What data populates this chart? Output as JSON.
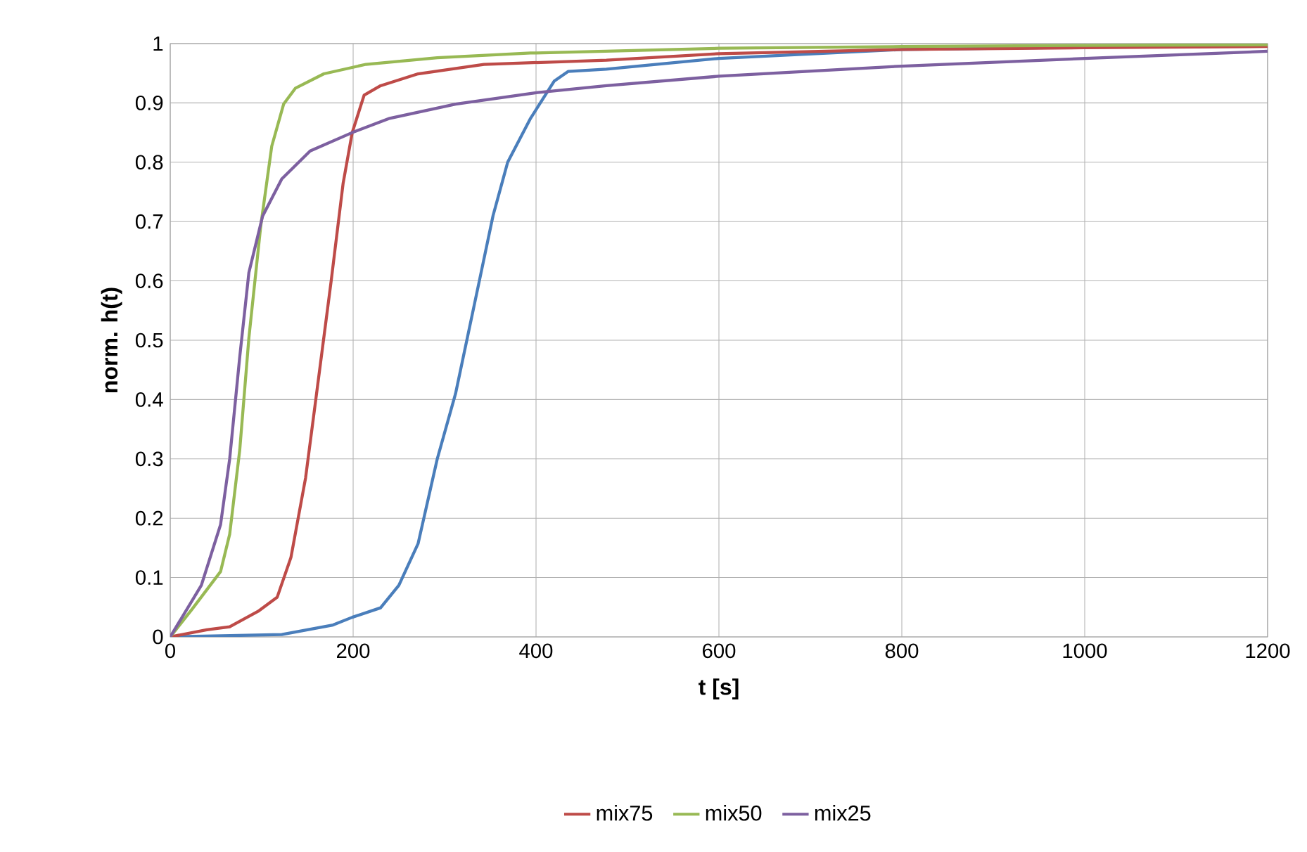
{
  "chart_data": {
    "type": "line",
    "xlabel": "t [s]",
    "ylabel": "norm. h(t)",
    "xlim": [
      0,
      1200
    ],
    "ylim": [
      0,
      1
    ],
    "xticks": [
      0,
      200,
      400,
      600,
      800,
      1000,
      1200
    ],
    "yticks": [
      0,
      0.1,
      0.2,
      0.3,
      0.4,
      0.5,
      0.6,
      0.7,
      0.8,
      0.9,
      1
    ],
    "grid": true,
    "legend": "bottom",
    "marker": "none",
    "line_style": "solid",
    "series": [
      {
        "color": "#4a7ebb",
        "x": [
          0,
          122,
          178,
          199,
          230,
          250,
          271,
          292,
          312,
          338,
          353,
          369,
          394,
          420,
          435,
          477,
          600,
          800,
          1000,
          1200
        ],
        "values": [
          0,
          0.004,
          0.02,
          0.033,
          0.049,
          0.087,
          0.157,
          0.3,
          0.41,
          0.6,
          0.71,
          0.8,
          0.874,
          0.937,
          0.953,
          0.957,
          0.975,
          0.99,
          null,
          0.998
        ]
      },
      {
        "name": "mix75",
        "color": "#be4b48",
        "x": [
          0,
          40,
          65,
          96,
          117,
          132,
          148,
          160,
          176,
          189,
          199,
          212,
          230,
          271,
          343,
          477,
          600,
          800,
          1000,
          1200
        ],
        "values": [
          0,
          0.012,
          0.017,
          0.043,
          0.067,
          0.134,
          0.268,
          0.41,
          0.6,
          0.764,
          0.85,
          0.913,
          0.929,
          0.949,
          0.965,
          0.972,
          0.983,
          0.99,
          0.993,
          0.995
        ]
      },
      {
        "name": "mix50",
        "color": "#98b954",
        "x": [
          0,
          24,
          55,
          65,
          76,
          86,
          99,
          111,
          124,
          137,
          168,
          214,
          292,
          394,
          600,
          800,
          1000,
          1200
        ],
        "values": [
          0,
          0.047,
          0.11,
          0.173,
          0.315,
          0.504,
          0.693,
          0.827,
          0.898,
          0.925,
          0.949,
          0.965,
          0.976,
          0.984,
          0.992,
          0.995,
          0.997,
          0.998
        ]
      },
      {
        "name": "mix25",
        "color": "#7d60a0",
        "x": [
          0,
          34,
          55,
          65,
          76,
          86,
          101,
          122,
          153,
          199,
          240,
          312,
          399,
          477,
          600,
          800,
          1000,
          1200
        ],
        "values": [
          0,
          0.087,
          0.189,
          0.3,
          0.472,
          0.614,
          0.709,
          0.772,
          0.819,
          0.85,
          0.874,
          0.898,
          0.917,
          0.929,
          0.945,
          0.962,
          0.975,
          0.987
        ]
      }
    ]
  }
}
